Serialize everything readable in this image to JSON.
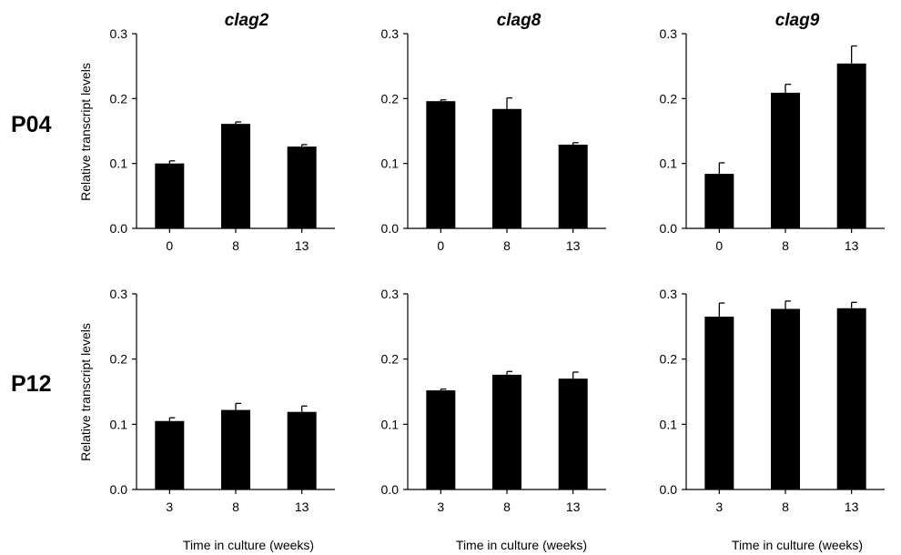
{
  "row_labels": [
    "P04",
    "P12"
  ],
  "y_axis_label": "Relative transcript levels",
  "x_axis_label": "Time in culture (weeks)",
  "chart_data": [
    {
      "type": "bar",
      "title": "clag2",
      "row": "P04",
      "categories": [
        "0",
        "8",
        "13"
      ],
      "values": [
        0.1,
        0.161,
        0.126
      ],
      "errors": [
        0.004,
        0.003,
        0.003
      ],
      "ylim": [
        0,
        0.3
      ],
      "yticks": [
        "0.0",
        "0.1",
        "0.2",
        "0.3"
      ],
      "ylabel": "Relative transcript levels",
      "xlabel": ""
    },
    {
      "type": "bar",
      "title": "clag8",
      "row": "P04",
      "categories": [
        "0",
        "8",
        "13"
      ],
      "values": [
        0.196,
        0.184,
        0.129
      ],
      "errors": [
        0.002,
        0.017,
        0.003
      ],
      "ylim": [
        0,
        0.3
      ],
      "yticks": [
        "0.0",
        "0.1",
        "0.2",
        "0.3"
      ],
      "ylabel": "",
      "xlabel": ""
    },
    {
      "type": "bar",
      "title": "clag9",
      "row": "P04",
      "categories": [
        "0",
        "8",
        "13"
      ],
      "values": [
        0.084,
        0.209,
        0.254
      ],
      "errors": [
        0.017,
        0.013,
        0.027
      ],
      "ylim": [
        0,
        0.3
      ],
      "yticks": [
        "0.0",
        "0.1",
        "0.2",
        "0.3"
      ],
      "ylabel": "",
      "xlabel": ""
    },
    {
      "type": "bar",
      "title": "",
      "row": "P12",
      "categories": [
        "3",
        "8",
        "13"
      ],
      "values": [
        0.105,
        0.122,
        0.119
      ],
      "errors": [
        0.005,
        0.01,
        0.009
      ],
      "ylim": [
        0,
        0.3
      ],
      "yticks": [
        "0.0",
        "0.1",
        "0.2",
        "0.3"
      ],
      "ylabel": "Relative transcript levels",
      "xlabel": "Time in culture (weeks)"
    },
    {
      "type": "bar",
      "title": "",
      "row": "P12",
      "categories": [
        "3",
        "8",
        "13"
      ],
      "values": [
        0.152,
        0.176,
        0.17
      ],
      "errors": [
        0.002,
        0.005,
        0.01
      ],
      "ylim": [
        0,
        0.3
      ],
      "yticks": [
        "0.0",
        "0.1",
        "0.2",
        "0.3"
      ],
      "ylabel": "",
      "xlabel": "Time in culture (weeks)"
    },
    {
      "type": "bar",
      "title": "",
      "row": "P12",
      "categories": [
        "3",
        "8",
        "13"
      ],
      "values": [
        0.265,
        0.277,
        0.278
      ],
      "errors": [
        0.021,
        0.012,
        0.009
      ],
      "ylim": [
        0,
        0.3
      ],
      "yticks": [
        "0.0",
        "0.1",
        "0.2",
        "0.3"
      ],
      "ylabel": "",
      "xlabel": "Time in culture (weeks)"
    }
  ]
}
